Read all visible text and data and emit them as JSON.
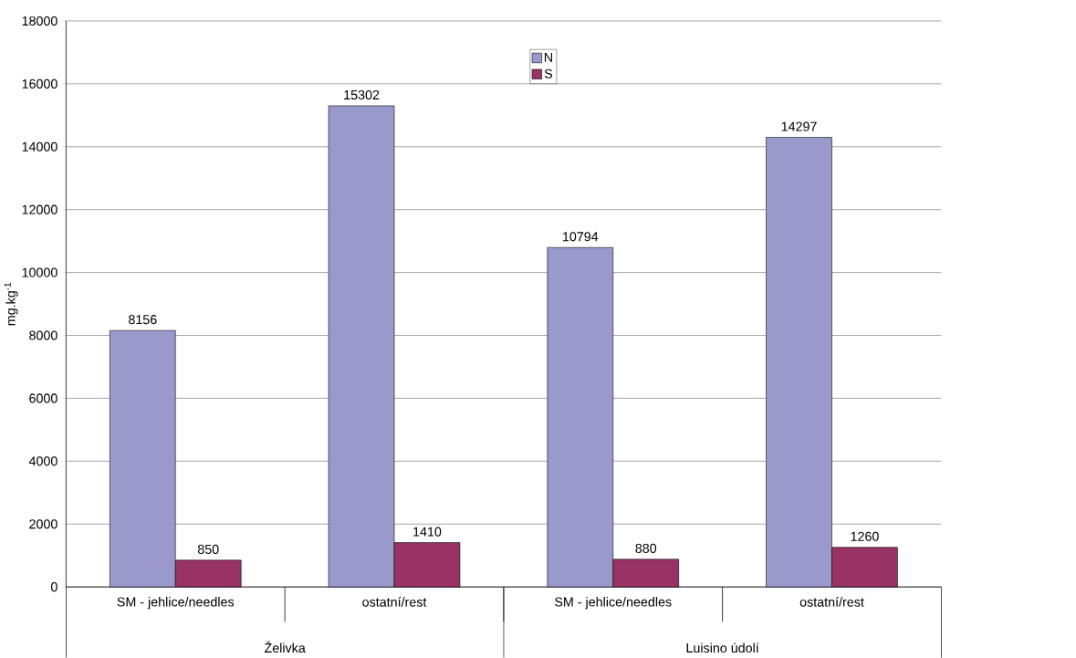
{
  "chart_data": {
    "type": "bar",
    "ylabel": "mg.kg$^{-1}$",
    "categories": [
      "SM - jehlice/needles",
      "ostatní/rest",
      "SM - jehlice/needles",
      "ostatní/rest"
    ],
    "series": [
      {
        "name": "N",
        "color": "#9999cc",
        "values": [
          8156,
          15302,
          10794,
          14297
        ]
      },
      {
        "name": "S",
        "color": "#993366",
        "values": [
          850,
          1410,
          880,
          1260
        ]
      }
    ],
    "ylim": [
      0,
      18000
    ],
    "yticks": [
      0,
      2000,
      4000,
      6000,
      8000,
      10000,
      12000,
      14000,
      16000,
      18000
    ],
    "grid": "y",
    "legend": "top",
    "data_labels": true,
    "annotations": [
      "Želivka",
      "Luisino údolí"
    ]
  }
}
